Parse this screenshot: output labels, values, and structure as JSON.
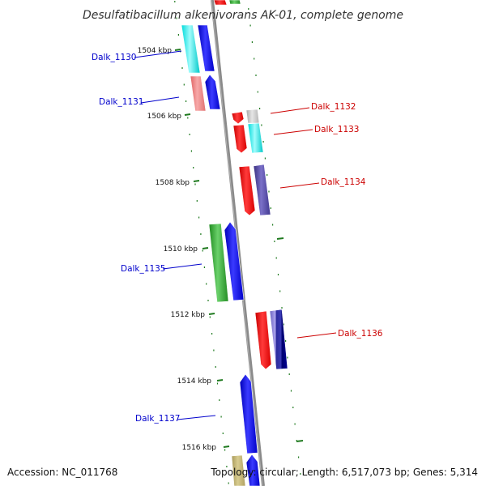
{
  "title": "Desulfatibacillum alkenivorans AK-01, complete genome",
  "footer": {
    "accession": "Accession: NC_011768",
    "genome_info": "Topology: circular; Length: 6,517,073 bp; Genes: 5,314"
  },
  "colors": {
    "backbone": "#8a8a8a",
    "tick": "#1f7a1f",
    "left_label": "#0000cc",
    "right_label": "#cc0000"
  },
  "kbp_labels": [
    "1504 kbp",
    "1506 kbp",
    "1508 kbp",
    "1510 kbp",
    "1512 kbp",
    "1514 kbp",
    "1516 kbp"
  ],
  "gene_labels_left": [
    "Dalk_1130",
    "Dalk_1131",
    "Dalk_1135",
    "Dalk_1137"
  ],
  "gene_labels_right": [
    "Dalk_1132",
    "Dalk_1133",
    "Dalk_1134",
    "Dalk_1136"
  ],
  "gene_colors": [
    "cyan",
    "blue",
    "light red",
    "red",
    "light gray",
    "navy",
    "green",
    "dark blue",
    "olive"
  ]
}
